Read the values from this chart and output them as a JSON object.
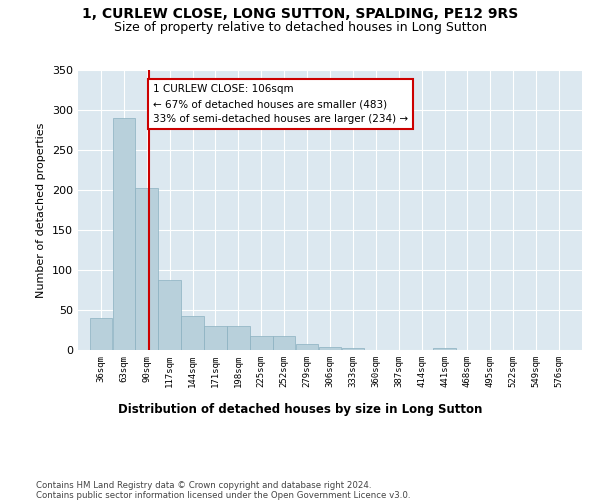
{
  "title": "1, CURLEW CLOSE, LONG SUTTON, SPALDING, PE12 9RS",
  "subtitle": "Size of property relative to detached houses in Long Sutton",
  "xlabel": "Distribution of detached houses by size in Long Sutton",
  "ylabel": "Number of detached properties",
  "bar_values": [
    40,
    290,
    203,
    88,
    43,
    30,
    30,
    18,
    18,
    8,
    4,
    3,
    0,
    0,
    0,
    3,
    0,
    0,
    0,
    0
  ],
  "bin_labels": [
    "36sqm",
    "63sqm",
    "90sqm",
    "117sqm",
    "144sqm",
    "171sqm",
    "198sqm",
    "225sqm",
    "252sqm",
    "279sqm",
    "306sqm",
    "333sqm",
    "360sqm",
    "387sqm",
    "414sqm",
    "441sqm",
    "468sqm",
    "495sqm",
    "522sqm",
    "549sqm",
    "576sqm"
  ],
  "bin_edges": [
    36,
    63,
    90,
    117,
    144,
    171,
    198,
    225,
    252,
    279,
    306,
    333,
    360,
    387,
    414,
    441,
    468,
    495,
    522,
    549,
    576
  ],
  "property_size": 106,
  "bar_color": "#b8d0db",
  "bar_edgecolor": "#8ab0c0",
  "vline_color": "#cc0000",
  "vline_x": 106,
  "annotation_text": "1 CURLEW CLOSE: 106sqm\n← 67% of detached houses are smaller (483)\n33% of semi-detached houses are larger (234) →",
  "annotation_box_color": "#ffffff",
  "annotation_box_edgecolor": "#cc0000",
  "ylim": [
    0,
    350
  ],
  "yticks": [
    0,
    50,
    100,
    150,
    200,
    250,
    300,
    350
  ],
  "bg_color": "#dce8f0",
  "footer": "Contains HM Land Registry data © Crown copyright and database right 2024.\nContains public sector information licensed under the Open Government Licence v3.0."
}
